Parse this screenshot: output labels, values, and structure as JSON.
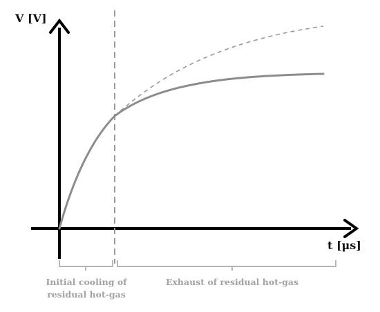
{
  "diagram": {
    "y_axis_label": "V [V]",
    "x_axis_label": "t [μs]",
    "phase_1_label_line_1": "Initial cooling of",
    "phase_1_label_line_2": "residual hot-gas",
    "phase_2_label": "Exhaust of residual hot-gas",
    "colors": {
      "axis": "#000000",
      "curve": "#8c8c8c",
      "dashed": "#9a9a9a",
      "bracket": "#b5b5b5",
      "phase_text": "#a3a3a3"
    }
  }
}
